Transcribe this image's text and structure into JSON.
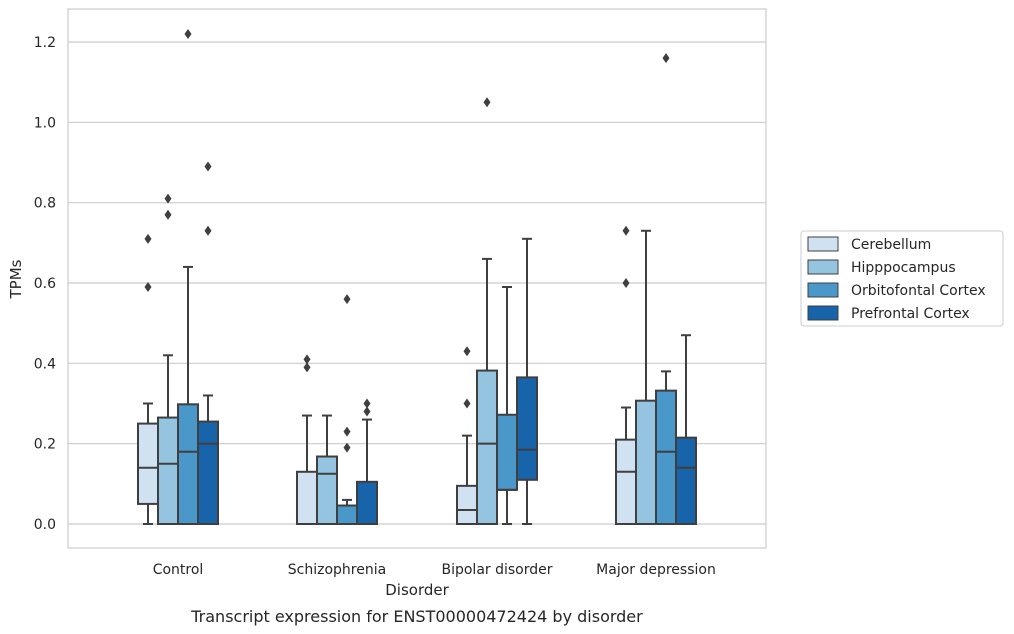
{
  "chart_data": {
    "type": "box",
    "caption": "Transcript expression for ENST00000472424 by disorder",
    "xlabel": "Disorder",
    "ylabel": "TPMs",
    "ylim": [
      -0.06,
      1.28
    ],
    "yticks": [
      "0.0",
      "0.2",
      "0.4",
      "0.6",
      "0.8",
      "1.0",
      "1.2"
    ],
    "grid": "horizontal",
    "legend_position": "right",
    "categories": [
      "Control",
      "Schizophrenia",
      "Bipolar disorder",
      "Major depression"
    ],
    "series": [
      {
        "name": "Cerebellum",
        "color": "#d0e1f2",
        "boxes": [
          {
            "min": 0.0,
            "q1": 0.05,
            "median": 0.14,
            "q3": 0.25,
            "max": 0.3,
            "outliers": [
              0.59,
              0.71
            ]
          },
          {
            "min": 0.0,
            "q1": 0.0,
            "median": 0.0,
            "q3": 0.13,
            "max": 0.27,
            "outliers": [
              0.39,
              0.41
            ]
          },
          {
            "min": 0.0,
            "q1": 0.0,
            "median": 0.035,
            "q3": 0.095,
            "max": 0.22,
            "outliers": [
              0.3,
              0.43
            ]
          },
          {
            "min": 0.0,
            "q1": 0.0,
            "median": 0.13,
            "q3": 0.21,
            "max": 0.29,
            "outliers": [
              0.6,
              0.73
            ]
          }
        ]
      },
      {
        "name": "Hipppocampus",
        "color": "#94c4df",
        "boxes": [
          {
            "min": 0.0,
            "q1": 0.0,
            "median": 0.15,
            "q3": 0.265,
            "max": 0.42,
            "outliers": [
              0.77,
              0.81
            ]
          },
          {
            "min": 0.0,
            "q1": 0.0,
            "median": 0.125,
            "q3": 0.168,
            "max": 0.27,
            "outliers": []
          },
          {
            "min": 0.0,
            "q1": 0.0,
            "median": 0.2,
            "q3": 0.382,
            "max": 0.66,
            "outliers": [
              1.05
            ]
          },
          {
            "min": 0.0,
            "q1": 0.0,
            "median": 0.0,
            "q3": 0.307,
            "max": 0.73,
            "outliers": []
          }
        ]
      },
      {
        "name": "Orbitofontal Cortex",
        "color": "#4a98c9",
        "boxes": [
          {
            "min": 0.0,
            "q1": 0.0,
            "median": 0.18,
            "q3": 0.298,
            "max": 0.64,
            "outliers": [
              1.22
            ]
          },
          {
            "min": 0.0,
            "q1": 0.0,
            "median": 0.0,
            "q3": 0.046,
            "max": 0.06,
            "outliers": [
              0.19,
              0.23,
              0.56
            ]
          },
          {
            "min": 0.0,
            "q1": 0.085,
            "median": 0.085,
            "q3": 0.272,
            "max": 0.59,
            "outliers": []
          },
          {
            "min": 0.0,
            "q1": 0.0,
            "median": 0.18,
            "q3": 0.332,
            "max": 0.38,
            "outliers": [
              1.16
            ]
          }
        ]
      },
      {
        "name": "Prefrontal Cortex",
        "color": "#1764ab",
        "boxes": [
          {
            "min": 0.0,
            "q1": 0.0,
            "median": 0.2,
            "q3": 0.255,
            "max": 0.32,
            "outliers": [
              0.73,
              0.89
            ]
          },
          {
            "min": 0.0,
            "q1": 0.0,
            "median": 0.0,
            "q3": 0.105,
            "max": 0.26,
            "outliers": [
              0.28,
              0.3
            ]
          },
          {
            "min": 0.0,
            "q1": 0.11,
            "median": 0.185,
            "q3": 0.365,
            "max": 0.71,
            "outliers": []
          },
          {
            "min": 0.0,
            "q1": 0.0,
            "median": 0.14,
            "q3": 0.215,
            "max": 0.47,
            "outliers": []
          }
        ]
      }
    ]
  }
}
